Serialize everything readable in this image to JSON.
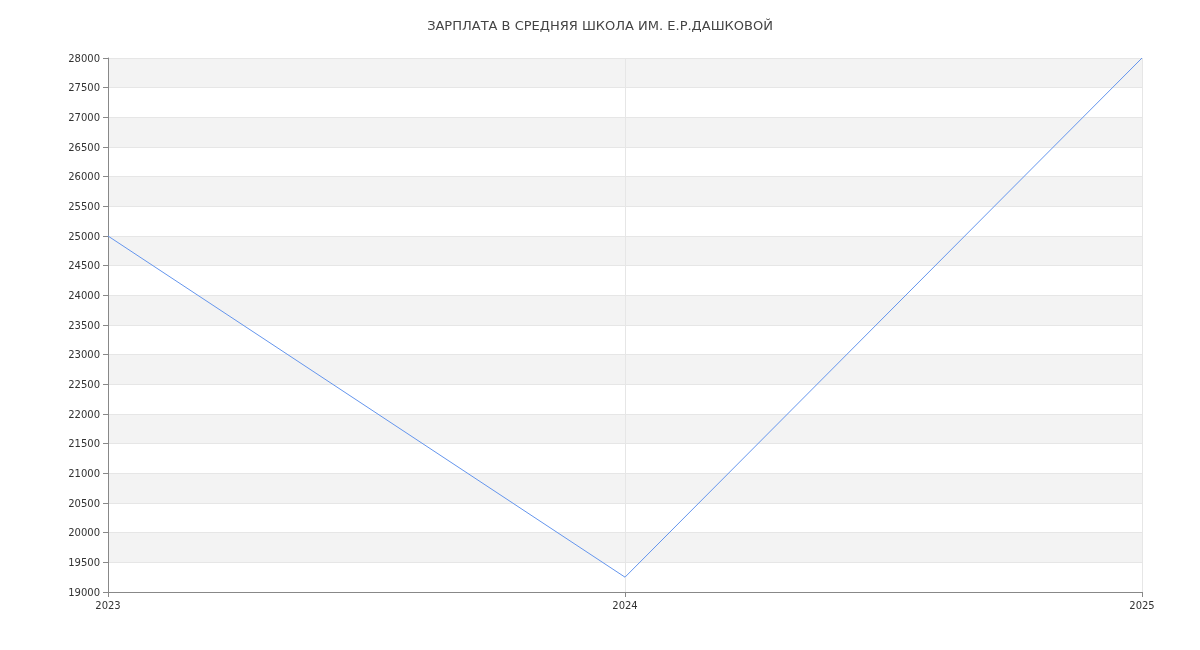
{
  "chart_data": {
    "type": "line",
    "title": "ЗАРПЛАТА В СРЕДНЯЯ ШКОЛА ИМ. Е.Р.ДАШКОВОЙ",
    "x": [
      2023,
      2024,
      2025
    ],
    "series": [
      {
        "color": "#6495ed",
        "values": [
          25000,
          19250,
          28000
        ]
      }
    ],
    "xlim": [
      2023,
      2025
    ],
    "xticks": [
      2023,
      2024,
      2025
    ],
    "ylim": [
      19000,
      28000
    ],
    "yticks": [
      19000,
      19500,
      20000,
      20500,
      21000,
      21500,
      22000,
      22500,
      23000,
      23500,
      24000,
      24500,
      25000,
      25500,
      26000,
      26500,
      27000,
      27500,
      28000
    ],
    "grid": true,
    "marker": "none",
    "line_style": "solid"
  }
}
